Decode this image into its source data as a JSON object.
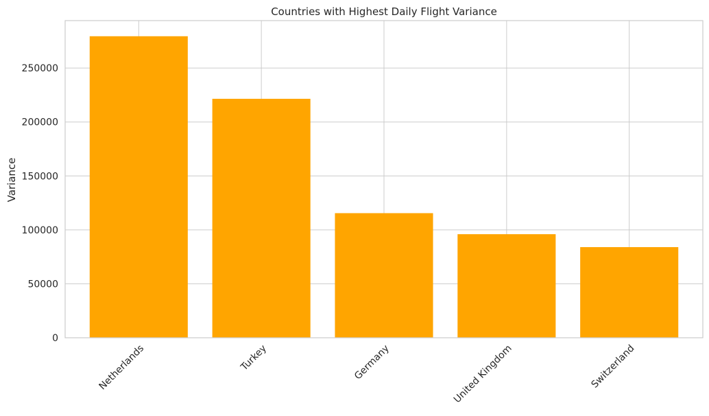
{
  "chart_data": {
    "type": "bar",
    "title": "Countries with Highest Daily Flight Variance",
    "xlabel": "",
    "ylabel": "Variance",
    "categories": [
      "Netherlands",
      "Turkey",
      "Germany",
      "United Kingdom",
      "Switzerland"
    ],
    "values": [
      279500,
      221500,
      115500,
      96000,
      84000
    ],
    "ylim": [
      0,
      294000
    ],
    "yticks": [
      0,
      50000,
      100000,
      150000,
      200000,
      250000
    ],
    "ytick_labels": [
      "0",
      "50000",
      "100000",
      "150000",
      "200000",
      "250000"
    ],
    "bar_color": "#ffa500",
    "grid": true,
    "legend": "none"
  }
}
